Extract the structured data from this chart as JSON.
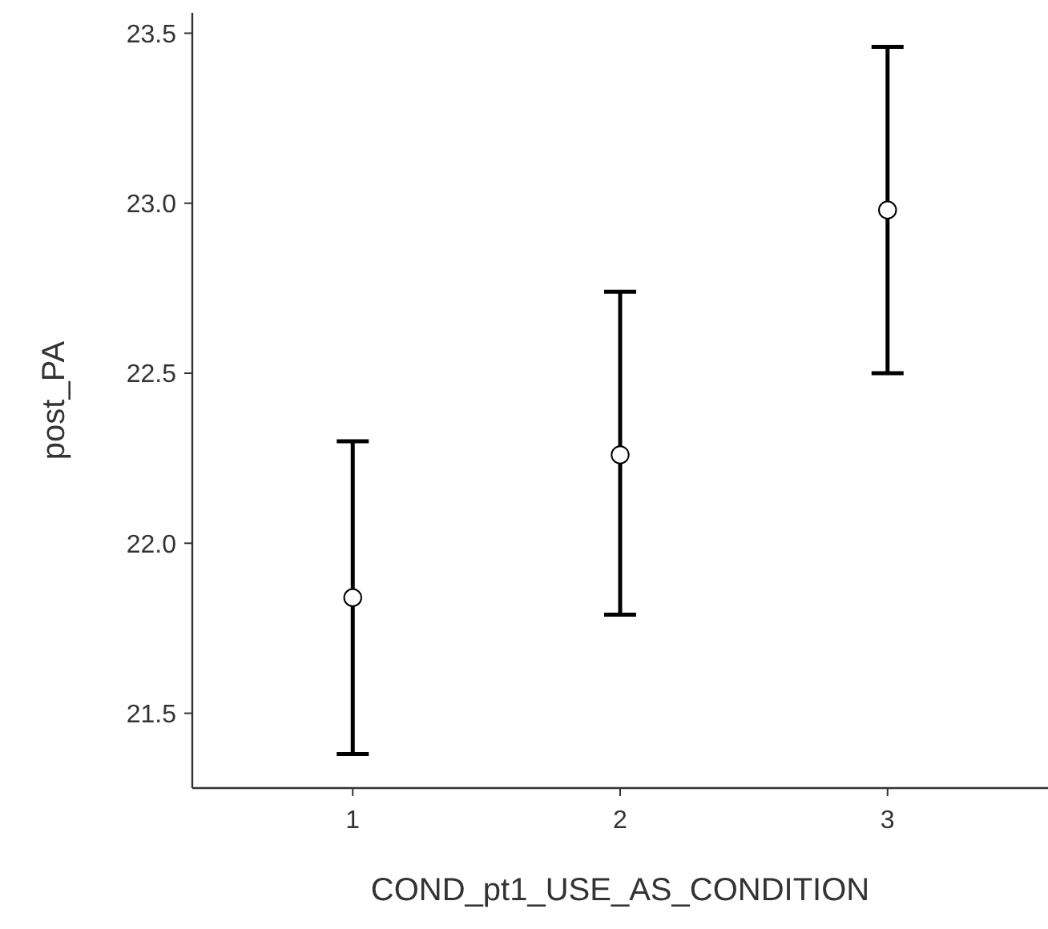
{
  "chart_data": {
    "type": "scatter",
    "xlabel": "COND_pt1_USE_AS_CONDITION",
    "ylabel": "post_PA",
    "categories": [
      "1",
      "2",
      "3"
    ],
    "series": [
      {
        "color": "#ffffff",
        "values": [
          21.84,
          22.26,
          22.98
        ],
        "errors": [
          [
            21.38,
            22.3
          ],
          [
            21.79,
            22.74
          ],
          [
            22.5,
            23.46
          ]
        ]
      }
    ],
    "ylim": [
      21.28,
      23.56
    ],
    "yticks": [
      {
        "value": 21.5,
        "label": "21.5"
      },
      {
        "value": 22,
        "label": "22.0"
      },
      {
        "value": 22.5,
        "label": "22.5"
      },
      {
        "value": 23,
        "label": "23.0"
      },
      {
        "value": 23.5,
        "label": "23.5"
      }
    ],
    "marker": "circle"
  }
}
